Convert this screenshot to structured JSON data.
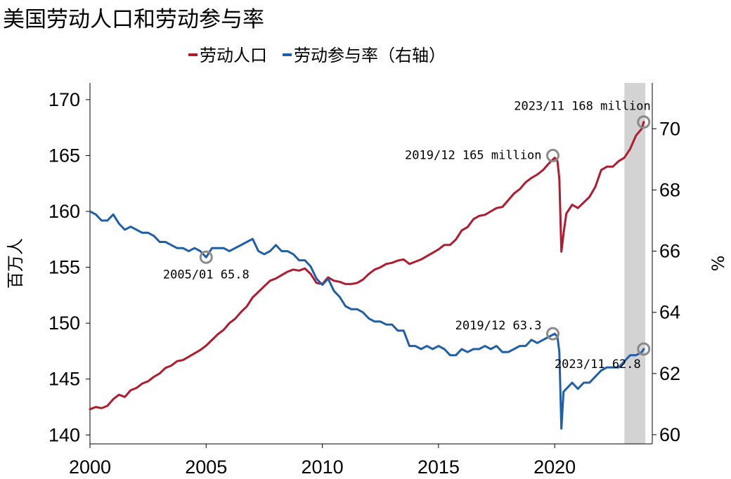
{
  "title": "美国劳动人口和劳动参与率",
  "chart_data": {
    "type": "line",
    "legend": {
      "placement": "top-center"
    },
    "grid": false,
    "x_axis": {
      "range": [
        2000,
        2024.2
      ],
      "ticks": [
        2000,
        2005,
        2010,
        2015,
        2020
      ]
    },
    "y_left": {
      "label": "百万人",
      "range": [
        139.2,
        171.5
      ],
      "ticks": [
        140,
        145,
        150,
        155,
        160,
        165,
        170
      ]
    },
    "y_right": {
      "label": "%",
      "range": [
        59.7,
        71.5
      ],
      "ticks": [
        60,
        62,
        64,
        66,
        68,
        70
      ]
    },
    "shaded_region": {
      "x": [
        2023.0,
        2023.9
      ],
      "color": "#d3d3d3"
    },
    "series": [
      {
        "name": "劳动人口",
        "axis": "left",
        "color": "#b01b2e",
        "points": [
          [
            2000.0,
            142.3
          ],
          [
            2000.25,
            142.5
          ],
          [
            2000.5,
            142.4
          ],
          [
            2000.75,
            142.6
          ],
          [
            2001.0,
            143.2
          ],
          [
            2001.25,
            143.6
          ],
          [
            2001.5,
            143.4
          ],
          [
            2001.75,
            144.0
          ],
          [
            2002.0,
            144.2
          ],
          [
            2002.25,
            144.6
          ],
          [
            2002.5,
            144.8
          ],
          [
            2002.75,
            145.2
          ],
          [
            2003.0,
            145.5
          ],
          [
            2003.25,
            146.0
          ],
          [
            2003.5,
            146.2
          ],
          [
            2003.75,
            146.6
          ],
          [
            2004.0,
            146.7
          ],
          [
            2004.25,
            147.0
          ],
          [
            2004.5,
            147.3
          ],
          [
            2004.75,
            147.6
          ],
          [
            2005.0,
            148.0
          ],
          [
            2005.25,
            148.5
          ],
          [
            2005.5,
            149.0
          ],
          [
            2005.75,
            149.4
          ],
          [
            2006.0,
            150.0
          ],
          [
            2006.25,
            150.4
          ],
          [
            2006.5,
            151.0
          ],
          [
            2006.75,
            151.5
          ],
          [
            2007.0,
            152.3
          ],
          [
            2007.25,
            152.8
          ],
          [
            2007.5,
            153.3
          ],
          [
            2007.75,
            153.8
          ],
          [
            2008.0,
            154.0
          ],
          [
            2008.25,
            154.3
          ],
          [
            2008.5,
            154.6
          ],
          [
            2008.75,
            154.8
          ],
          [
            2009.0,
            154.7
          ],
          [
            2009.25,
            154.9
          ],
          [
            2009.5,
            154.4
          ],
          [
            2009.75,
            153.6
          ],
          [
            2010.0,
            153.5
          ],
          [
            2010.25,
            154.1
          ],
          [
            2010.5,
            153.8
          ],
          [
            2010.75,
            153.7
          ],
          [
            2011.0,
            153.5
          ],
          [
            2011.25,
            153.5
          ],
          [
            2011.5,
            153.6
          ],
          [
            2011.75,
            153.9
          ],
          [
            2012.0,
            154.4
          ],
          [
            2012.25,
            154.8
          ],
          [
            2012.5,
            155.0
          ],
          [
            2012.75,
            155.3
          ],
          [
            2013.0,
            155.4
          ],
          [
            2013.25,
            155.6
          ],
          [
            2013.5,
            155.7
          ],
          [
            2013.75,
            155.3
          ],
          [
            2014.0,
            155.5
          ],
          [
            2014.25,
            155.7
          ],
          [
            2014.5,
            156.0
          ],
          [
            2014.75,
            156.3
          ],
          [
            2015.0,
            156.6
          ],
          [
            2015.25,
            157.0
          ],
          [
            2015.5,
            157.0
          ],
          [
            2015.75,
            157.5
          ],
          [
            2016.0,
            158.3
          ],
          [
            2016.25,
            158.6
          ],
          [
            2016.5,
            159.3
          ],
          [
            2016.75,
            159.6
          ],
          [
            2017.0,
            159.7
          ],
          [
            2017.25,
            160.0
          ],
          [
            2017.5,
            160.3
          ],
          [
            2017.75,
            160.4
          ],
          [
            2018.0,
            161.0
          ],
          [
            2018.25,
            161.6
          ],
          [
            2018.5,
            162.0
          ],
          [
            2018.75,
            162.6
          ],
          [
            2019.0,
            163.0
          ],
          [
            2019.25,
            163.3
          ],
          [
            2019.5,
            163.7
          ],
          [
            2019.75,
            164.3
          ],
          [
            2020.0,
            164.8
          ],
          [
            2020.12,
            164.5
          ],
          [
            2020.2,
            162.9
          ],
          [
            2020.29,
            156.4
          ],
          [
            2020.38,
            158.0
          ],
          [
            2020.5,
            159.8
          ],
          [
            2020.75,
            160.6
          ],
          [
            2021.0,
            160.3
          ],
          [
            2021.25,
            160.8
          ],
          [
            2021.5,
            161.3
          ],
          [
            2021.75,
            162.2
          ],
          [
            2022.0,
            163.7
          ],
          [
            2022.25,
            164.0
          ],
          [
            2022.5,
            164.0
          ],
          [
            2022.75,
            164.5
          ],
          [
            2023.0,
            164.8
          ],
          [
            2023.25,
            165.6
          ],
          [
            2023.5,
            166.8
          ],
          [
            2023.75,
            167.4
          ],
          [
            2023.83,
            168.0
          ]
        ]
      },
      {
        "name": "劳动参与率（右轴）",
        "axis": "right",
        "color": "#1f5ea8",
        "points": [
          [
            2000.0,
            67.3
          ],
          [
            2000.25,
            67.2
          ],
          [
            2000.5,
            67.0
          ],
          [
            2000.75,
            67.0
          ],
          [
            2001.0,
            67.2
          ],
          [
            2001.25,
            66.9
          ],
          [
            2001.5,
            66.7
          ],
          [
            2001.75,
            66.8
          ],
          [
            2002.0,
            66.7
          ],
          [
            2002.25,
            66.6
          ],
          [
            2002.5,
            66.6
          ],
          [
            2002.75,
            66.5
          ],
          [
            2003.0,
            66.3
          ],
          [
            2003.25,
            66.3
          ],
          [
            2003.5,
            66.2
          ],
          [
            2003.75,
            66.1
          ],
          [
            2004.0,
            66.1
          ],
          [
            2004.25,
            66.0
          ],
          [
            2004.5,
            66.1
          ],
          [
            2004.75,
            66.0
          ],
          [
            2005.0,
            65.8
          ],
          [
            2005.25,
            66.1
          ],
          [
            2005.5,
            66.1
          ],
          [
            2005.75,
            66.1
          ],
          [
            2006.0,
            66.0
          ],
          [
            2006.25,
            66.1
          ],
          [
            2006.5,
            66.2
          ],
          [
            2006.75,
            66.3
          ],
          [
            2007.0,
            66.4
          ],
          [
            2007.25,
            66.0
          ],
          [
            2007.5,
            65.9
          ],
          [
            2007.75,
            66.0
          ],
          [
            2008.0,
            66.2
          ],
          [
            2008.25,
            66.0
          ],
          [
            2008.5,
            66.0
          ],
          [
            2008.75,
            65.9
          ],
          [
            2009.0,
            65.7
          ],
          [
            2009.25,
            65.7
          ],
          [
            2009.5,
            65.5
          ],
          [
            2009.75,
            65.1
          ],
          [
            2010.0,
            64.9
          ],
          [
            2010.25,
            65.1
          ],
          [
            2010.5,
            64.7
          ],
          [
            2010.75,
            64.5
          ],
          [
            2011.0,
            64.2
          ],
          [
            2011.25,
            64.1
          ],
          [
            2011.5,
            64.1
          ],
          [
            2011.75,
            64.0
          ],
          [
            2012.0,
            63.8
          ],
          [
            2012.25,
            63.7
          ],
          [
            2012.5,
            63.7
          ],
          [
            2012.75,
            63.6
          ],
          [
            2013.0,
            63.6
          ],
          [
            2013.25,
            63.4
          ],
          [
            2013.5,
            63.4
          ],
          [
            2013.75,
            62.9
          ],
          [
            2014.0,
            62.9
          ],
          [
            2014.25,
            62.8
          ],
          [
            2014.5,
            62.9
          ],
          [
            2014.75,
            62.8
          ],
          [
            2015.0,
            62.9
          ],
          [
            2015.25,
            62.8
          ],
          [
            2015.5,
            62.6
          ],
          [
            2015.75,
            62.6
          ],
          [
            2016.0,
            62.8
          ],
          [
            2016.25,
            62.7
          ],
          [
            2016.5,
            62.8
          ],
          [
            2016.75,
            62.8
          ],
          [
            2017.0,
            62.9
          ],
          [
            2017.25,
            62.8
          ],
          [
            2017.5,
            62.9
          ],
          [
            2017.75,
            62.7
          ],
          [
            2018.0,
            62.7
          ],
          [
            2018.25,
            62.8
          ],
          [
            2018.5,
            62.9
          ],
          [
            2018.75,
            62.9
          ],
          [
            2019.0,
            63.1
          ],
          [
            2019.25,
            63.0
          ],
          [
            2019.5,
            63.1
          ],
          [
            2019.75,
            63.2
          ],
          [
            2020.0,
            63.3
          ],
          [
            2020.12,
            63.2
          ],
          [
            2020.2,
            62.7
          ],
          [
            2020.29,
            60.2
          ],
          [
            2020.38,
            61.4
          ],
          [
            2020.5,
            61.5
          ],
          [
            2020.75,
            61.7
          ],
          [
            2021.0,
            61.5
          ],
          [
            2021.25,
            61.7
          ],
          [
            2021.5,
            61.7
          ],
          [
            2021.75,
            61.9
          ],
          [
            2022.0,
            62.1
          ],
          [
            2022.25,
            62.2
          ],
          [
            2022.5,
            62.2
          ],
          [
            2022.75,
            62.2
          ],
          [
            2023.0,
            62.4
          ],
          [
            2023.25,
            62.6
          ],
          [
            2023.5,
            62.6
          ],
          [
            2023.75,
            62.7
          ],
          [
            2023.83,
            62.8
          ]
        ]
      }
    ],
    "annotations": [
      {
        "text": "2005/01 65.8",
        "x": 2005.0,
        "y": 65.8,
        "axis": "right",
        "text_anchor": "middle",
        "dy": 30
      },
      {
        "text": "2019/12 165 million",
        "x": 2019.92,
        "y": 165.0,
        "axis": "left",
        "text_anchor": "end",
        "dx": -16,
        "dy": 5
      },
      {
        "text": "2019/12 63.3",
        "x": 2019.92,
        "y": 63.3,
        "axis": "right",
        "text_anchor": "end",
        "dx": -16,
        "dy": -6
      },
      {
        "text": "2023/11 168 million",
        "x": 2023.83,
        "y": 168.0,
        "axis": "left",
        "text_anchor": "end",
        "dx": 10,
        "dy": -17
      },
      {
        "text": "2023/11 62.8",
        "x": 2023.83,
        "y": 62.8,
        "axis": "right",
        "text_anchor": "end",
        "dx": -4,
        "dy": 27
      }
    ]
  }
}
